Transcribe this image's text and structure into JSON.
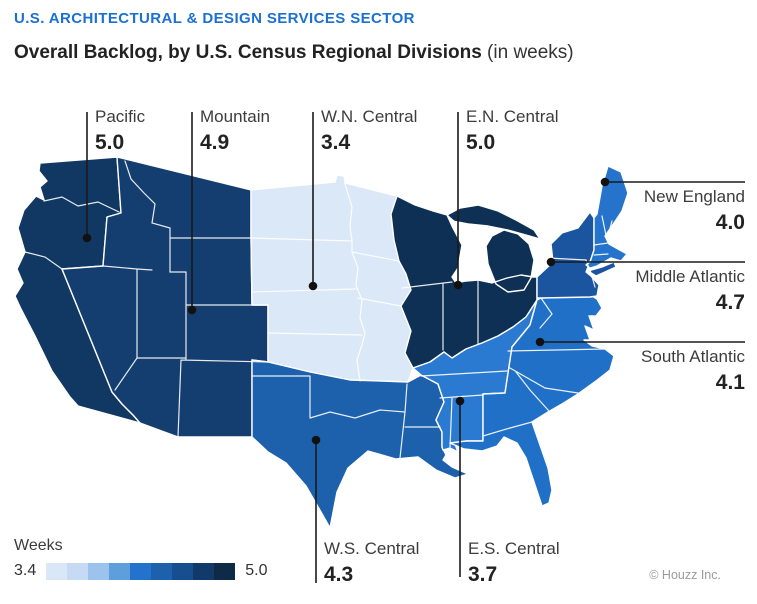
{
  "header": {
    "eyebrow": "U.S. ARCHITECTURAL & DESIGN SERVICES SECTOR",
    "title": "Overall Backlog, by U.S. Census Regional Divisions",
    "title_suffix": " (in weeks)"
  },
  "regions": [
    {
      "id": "pacific",
      "name": "Pacific",
      "value": "5.0",
      "color": "#113862"
    },
    {
      "id": "mountain",
      "name": "Mountain",
      "value": "4.9",
      "color": "#143e70"
    },
    {
      "id": "wn-central",
      "name": "W.N. Central",
      "value": "3.4",
      "color": "#dae8f7"
    },
    {
      "id": "en-central",
      "name": "E.N. Central",
      "value": "5.0",
      "color": "#0d3054"
    },
    {
      "id": "new-england",
      "name": "New England",
      "value": "4.0",
      "color": "#2573cb"
    },
    {
      "id": "middle-atlantic",
      "name": "Middle Atlantic",
      "value": "4.7",
      "color": "#1b55a0"
    },
    {
      "id": "south-atlantic",
      "name": "South Atlantic",
      "value": "4.1",
      "color": "#2170c7"
    },
    {
      "id": "ws-central",
      "name": "W.S. Central",
      "value": "4.3",
      "color": "#1d60ac"
    },
    {
      "id": "es-central",
      "name": "E.S. Central",
      "value": "3.7",
      "color": "#2b7ad2"
    }
  ],
  "legend": {
    "label": "Weeks",
    "min": "3.4",
    "max": "5.0",
    "stops": [
      "#d9e7f7",
      "#c6dbf3",
      "#9cc3ec",
      "#5f9edd",
      "#2373cd",
      "#1d60ac",
      "#174e90",
      "#113a6b",
      "#0d2b47"
    ]
  },
  "footer": {
    "credit": "© Houzz Inc."
  },
  "chart_data": {
    "type": "heatmap",
    "subtype": "choropleth-us-census-divisions",
    "title": "Overall Backlog, by U.S. Census Regional Divisions (in weeks)",
    "sector": "U.S. Architectural & Design Services Sector",
    "unit": "weeks",
    "categories": [
      "Pacific",
      "Mountain",
      "W.N. Central",
      "E.N. Central",
      "New England",
      "Middle Atlantic",
      "South Atlantic",
      "W.S. Central",
      "E.S. Central"
    ],
    "values": [
      5.0,
      4.9,
      3.4,
      5.0,
      4.0,
      4.7,
      4.1,
      4.3,
      3.7
    ],
    "color_scale": {
      "min": 3.4,
      "max": 5.0,
      "legend_position": "bottom-left"
    },
    "source": "© Houzz Inc."
  }
}
